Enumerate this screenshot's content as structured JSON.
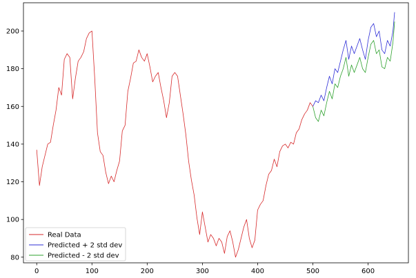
{
  "chart_data": {
    "type": "line",
    "title": "",
    "xlabel": "",
    "ylabel": "",
    "xlim": [
      -24,
      673
    ],
    "ylim": [
      77,
      215
    ],
    "grid": false,
    "legend_placement": "lower-left",
    "xticks": [
      0,
      100,
      200,
      300,
      400,
      500,
      600
    ],
    "yticks": [
      80,
      100,
      120,
      140,
      160,
      180,
      200
    ],
    "xtick_labels": [
      "0",
      "100",
      "200",
      "300",
      "400",
      "500",
      "600"
    ],
    "ytick_labels": [
      "80",
      "100",
      "120",
      "140",
      "160",
      "180",
      "200"
    ],
    "series": [
      {
        "name": "Real Data",
        "color": "#d62728",
        "points": [
          [
            0,
            137
          ],
          [
            5,
            118
          ],
          [
            10,
            128
          ],
          [
            15,
            134
          ],
          [
            20,
            140
          ],
          [
            25,
            141
          ],
          [
            30,
            150
          ],
          [
            35,
            158
          ],
          [
            40,
            170
          ],
          [
            45,
            166
          ],
          [
            50,
            185
          ],
          [
            55,
            188
          ],
          [
            60,
            186
          ],
          [
            65,
            164
          ],
          [
            70,
            175
          ],
          [
            75,
            184
          ],
          [
            80,
            186
          ],
          [
            85,
            189
          ],
          [
            90,
            196
          ],
          [
            95,
            199
          ],
          [
            100,
            200
          ],
          [
            105,
            175
          ],
          [
            110,
            146
          ],
          [
            115,
            136
          ],
          [
            120,
            134
          ],
          [
            125,
            125
          ],
          [
            130,
            119
          ],
          [
            135,
            123
          ],
          [
            140,
            120
          ],
          [
            145,
            126
          ],
          [
            150,
            131
          ],
          [
            155,
            147
          ],
          [
            160,
            150
          ],
          [
            165,
            168
          ],
          [
            170,
            175
          ],
          [
            175,
            183
          ],
          [
            180,
            184
          ],
          [
            185,
            190
          ],
          [
            190,
            186
          ],
          [
            195,
            184
          ],
          [
            200,
            188
          ],
          [
            205,
            181
          ],
          [
            210,
            173
          ],
          [
            215,
            176
          ],
          [
            220,
            178
          ],
          [
            225,
            170
          ],
          [
            230,
            163
          ],
          [
            235,
            154
          ],
          [
            240,
            162
          ],
          [
            245,
            176
          ],
          [
            250,
            178
          ],
          [
            255,
            176
          ],
          [
            260,
            166
          ],
          [
            265,
            156
          ],
          [
            270,
            145
          ],
          [
            275,
            131
          ],
          [
            280,
            121
          ],
          [
            285,
            113
          ],
          [
            290,
            101
          ],
          [
            295,
            92
          ],
          [
            300,
            104
          ],
          [
            305,
            96
          ],
          [
            310,
            88
          ],
          [
            315,
            92
          ],
          [
            320,
            90
          ],
          [
            325,
            86
          ],
          [
            330,
            90
          ],
          [
            335,
            88
          ],
          [
            340,
            82
          ],
          [
            345,
            91
          ],
          [
            350,
            94
          ],
          [
            355,
            88
          ],
          [
            360,
            80
          ],
          [
            365,
            84
          ],
          [
            370,
            90
          ],
          [
            375,
            96
          ],
          [
            380,
            100
          ],
          [
            385,
            90
          ],
          [
            390,
            85
          ],
          [
            395,
            89
          ],
          [
            400,
            105
          ],
          [
            405,
            108
          ],
          [
            410,
            110
          ],
          [
            415,
            118
          ],
          [
            420,
            124
          ],
          [
            425,
            126
          ],
          [
            430,
            132
          ],
          [
            435,
            128
          ],
          [
            440,
            136
          ],
          [
            445,
            139
          ],
          [
            450,
            140
          ],
          [
            455,
            138
          ],
          [
            460,
            141
          ],
          [
            465,
            140
          ],
          [
            470,
            146
          ],
          [
            475,
            148
          ],
          [
            480,
            153
          ],
          [
            485,
            156
          ],
          [
            490,
            158
          ],
          [
            495,
            162
          ],
          [
            500,
            160
          ]
        ]
      },
      {
        "name": "Predicted + 2 std dev",
        "color": "#2c2cd6",
        "points": [
          [
            500,
            160
          ],
          [
            505,
            163
          ],
          [
            510,
            162
          ],
          [
            515,
            166
          ],
          [
            520,
            163
          ],
          [
            525,
            170
          ],
          [
            530,
            176
          ],
          [
            535,
            172
          ],
          [
            540,
            180
          ],
          [
            545,
            178
          ],
          [
            550,
            184
          ],
          [
            555,
            190
          ],
          [
            560,
            195
          ],
          [
            565,
            185
          ],
          [
            570,
            192
          ],
          [
            575,
            188
          ],
          [
            580,
            192
          ],
          [
            585,
            196
          ],
          [
            590,
            190
          ],
          [
            595,
            185
          ],
          [
            600,
            195
          ],
          [
            605,
            202
          ],
          [
            610,
            204
          ],
          [
            615,
            197
          ],
          [
            620,
            200
          ],
          [
            625,
            190
          ],
          [
            630,
            188
          ],
          [
            635,
            195
          ],
          [
            640,
            192
          ],
          [
            645,
            200
          ],
          [
            648,
            210
          ]
        ]
      },
      {
        "name": "Predicted - 2 std dev",
        "color": "#2ca02c",
        "points": [
          [
            500,
            160
          ],
          [
            505,
            154
          ],
          [
            510,
            152
          ],
          [
            515,
            158
          ],
          [
            520,
            155
          ],
          [
            525,
            162
          ],
          [
            530,
            168
          ],
          [
            535,
            164
          ],
          [
            540,
            172
          ],
          [
            545,
            170
          ],
          [
            550,
            176
          ],
          [
            555,
            180
          ],
          [
            560,
            186
          ],
          [
            565,
            176
          ],
          [
            570,
            182
          ],
          [
            575,
            178
          ],
          [
            580,
            182
          ],
          [
            585,
            186
          ],
          [
            590,
            180
          ],
          [
            595,
            178
          ],
          [
            600,
            186
          ],
          [
            605,
            193
          ],
          [
            610,
            195
          ],
          [
            615,
            188
          ],
          [
            620,
            190
          ],
          [
            625,
            181
          ],
          [
            630,
            180
          ],
          [
            635,
            186
          ],
          [
            640,
            184
          ],
          [
            645,
            194
          ],
          [
            648,
            205
          ]
        ]
      }
    ]
  }
}
